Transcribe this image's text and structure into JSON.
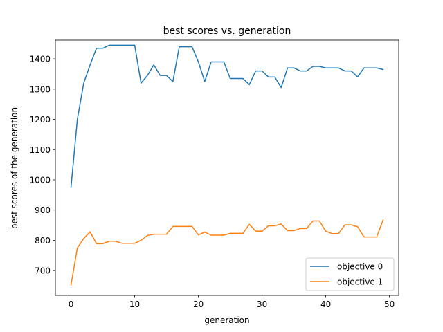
{
  "chart_data": {
    "type": "line",
    "title": "best scores vs. generation",
    "xlabel": "generation",
    "ylabel": "best scores of the generation",
    "xlim": [
      -2.45,
      51.45
    ],
    "ylim": [
      618,
      1462
    ],
    "xticks": [
      0,
      10,
      20,
      30,
      40,
      50
    ],
    "yticks": [
      700,
      800,
      900,
      1000,
      1100,
      1200,
      1300,
      1400
    ],
    "grid": false,
    "legend_position": "lower-right",
    "x": [
      0,
      1,
      2,
      3,
      4,
      5,
      6,
      7,
      8,
      9,
      10,
      11,
      12,
      13,
      14,
      15,
      16,
      17,
      18,
      19,
      20,
      21,
      22,
      23,
      24,
      25,
      26,
      27,
      28,
      29,
      30,
      31,
      32,
      33,
      34,
      35,
      36,
      37,
      38,
      39,
      40,
      41,
      42,
      43,
      44,
      45,
      46,
      47,
      48,
      49
    ],
    "series": [
      {
        "name": "objective 0",
        "color": "#1f77b4",
        "values": [
          975,
          1200,
          1320,
          1380,
          1435,
          1435,
          1445,
          1445,
          1445,
          1445,
          1445,
          1320,
          1345,
          1380,
          1345,
          1345,
          1325,
          1440,
          1440,
          1440,
          1390,
          1325,
          1390,
          1390,
          1390,
          1335,
          1335,
          1335,
          1315,
          1360,
          1360,
          1340,
          1340,
          1305,
          1370,
          1370,
          1360,
          1360,
          1375,
          1375,
          1370,
          1370,
          1370,
          1360,
          1360,
          1340,
          1370,
          1370,
          1370,
          1365
        ]
      },
      {
        "name": "objective 1",
        "color": "#ff7f0e",
        "values": [
          652,
          775,
          806,
          828,
          789,
          789,
          797,
          797,
          790,
          790,
          790,
          800,
          816,
          820,
          820,
          820,
          846,
          846,
          846,
          846,
          818,
          827,
          817,
          817,
          817,
          823,
          823,
          823,
          853,
          830,
          830,
          848,
          848,
          854,
          832,
          832,
          839,
          839,
          864,
          864,
          830,
          822,
          822,
          851,
          851,
          845,
          811,
          811,
          811,
          867
        ]
      }
    ]
  }
}
